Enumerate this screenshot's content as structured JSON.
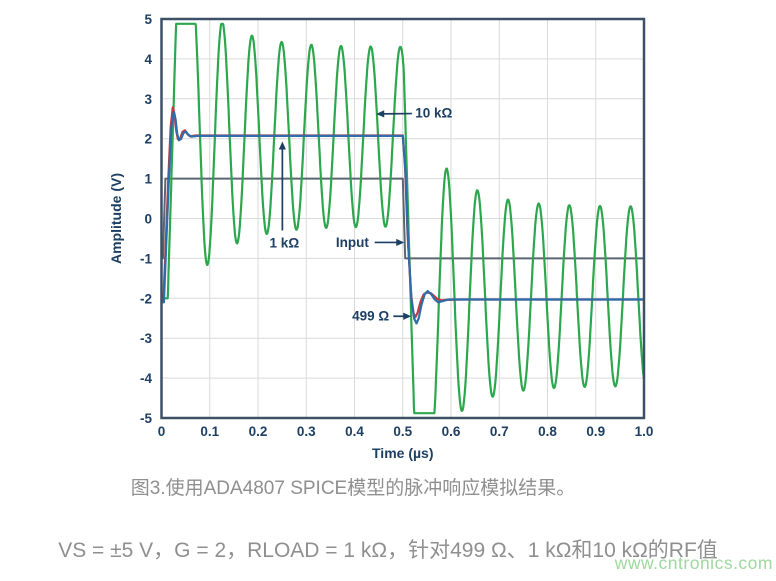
{
  "figure": {
    "caption": "图3.使用ADA4807 SPICE模型的脉冲响应模拟结果。",
    "subtext": "VS = ±5 V，G = 2，RLOAD = 1 kΩ，针对499 Ω、1 kΩ和10 kΩ的RF值",
    "watermark": "www.cntronics.com"
  },
  "chart_data": {
    "type": "line",
    "title": "",
    "xlabel": "Time (µs)",
    "ylabel": "Amplitude (V)",
    "xlim": [
      0,
      1.0
    ],
    "ylim": [
      -5,
      5
    ],
    "grid": true,
    "legend_position": "none",
    "xticks": {
      "values": [
        0,
        0.1,
        0.2,
        0.3,
        0.4,
        0.5,
        0.6,
        0.7,
        0.8,
        0.9,
        1.0
      ],
      "labels": [
        "0",
        "0.1",
        "0.2",
        "0.3",
        "0.4",
        "0.5",
        "0.6",
        "0.7",
        "0.8",
        "0.9",
        "1.0"
      ]
    },
    "yticks": {
      "values": [
        5,
        4,
        3,
        2,
        1,
        0,
        -1,
        -2,
        -3,
        -4,
        -5
      ],
      "labels": [
        "5",
        "4",
        "3",
        "2",
        "1",
        "0",
        "-1",
        "-2",
        "-3",
        "-4",
        "-5"
      ]
    },
    "colors": {
      "green": "#2ca74e",
      "blue": "#2e6cac",
      "red": "#c23b3b",
      "input_gray": "#5b6670",
      "axis_navy": "#1d3f63",
      "grid": "#d9d9d9",
      "border": "#3d5166"
    },
    "annotations": [
      {
        "label": "10 kΩ",
        "anchor": "start",
        "text": {
          "t": 0.526,
          "v": 2.64
        },
        "arrow": {
          "from": {
            "t": 0.519,
            "v": 2.63
          },
          "to": {
            "t": 0.445,
            "v": 2.62
          }
        }
      },
      {
        "label": "1 kΩ",
        "anchor": "middle",
        "text": {
          "t": 0.2546,
          "v": -0.62
        },
        "arrow": {
          "from": {
            "t": 0.2505,
            "v": -0.3
          },
          "to": {
            "t": 0.2505,
            "v": 1.93
          }
        }
      },
      {
        "label": "Input",
        "anchor": "middle",
        "text": {
          "t": 0.3955,
          "v": -0.6
        },
        "arrow": {
          "from": {
            "t": 0.4417,
            "v": -0.6
          },
          "to": {
            "t": 0.5031,
            "v": -0.6
          }
        }
      },
      {
        "label": "499 Ω",
        "anchor": "end",
        "text": {
          "t": 0.472,
          "v": -2.44
        },
        "arrow": {
          "from": {
            "t": 0.4804,
            "v": -2.45
          },
          "to": {
            "t": 0.5176,
            "v": -2.45
          }
        }
      }
    ],
    "series": [
      {
        "name": "Input",
        "color_key": "input_gray",
        "width": 2,
        "kind": "points",
        "points": [
          [
            0,
            -1
          ],
          [
            0.003,
            -1
          ],
          [
            0.008,
            1
          ],
          [
            0.5,
            1
          ],
          [
            0.505,
            -1
          ],
          [
            1,
            -1
          ]
        ]
      },
      {
        "name": "10 kΩ",
        "color_key": "green",
        "width": 2.2,
        "kind": "ringing",
        "params": {
          "start_level": -2,
          "delay": 0.013,
          "slew": 400,
          "clip_hi": 4.88,
          "clip_lo": -4.88,
          "fall_t": 0.502,
          "ring1": {
            "center": 2.05,
            "t0": 0.0645,
            "period": 0.0615,
            "a_base": 2.25,
            "a_amp": 1.45,
            "a_tau": 0.075
          },
          "ring2": {
            "center": -1.95,
            "t0": 0.5595,
            "period": 0.0635,
            "a_base": 2.25,
            "a_amp": 1.45,
            "a_tau": 0.075
          }
        }
      },
      {
        "name": "1 kΩ",
        "color_key": "red",
        "width": 2.2,
        "kind": "points",
        "points": [
          [
            0,
            -2.05
          ],
          [
            0.004,
            -2.05
          ],
          [
            0.009,
            -0.6
          ],
          [
            0.014,
            1.0
          ],
          [
            0.019,
            2.3
          ],
          [
            0.0235,
            2.79
          ],
          [
            0.027,
            2.62
          ],
          [
            0.0305,
            2.2
          ],
          [
            0.034,
            1.99
          ],
          [
            0.0385,
            2.0
          ],
          [
            0.0435,
            2.17
          ],
          [
            0.0485,
            2.21
          ],
          [
            0.0535,
            2.12
          ],
          [
            0.059,
            2.06
          ],
          [
            0.07,
            2.08
          ],
          [
            0.5,
            2.08
          ],
          [
            0.5045,
            1.4
          ],
          [
            0.51,
            -0.4
          ],
          [
            0.517,
            -1.9
          ],
          [
            0.5225,
            -2.38
          ],
          [
            0.5265,
            -2.47
          ],
          [
            0.531,
            -2.35
          ],
          [
            0.537,
            -2.08
          ],
          [
            0.5435,
            -1.9
          ],
          [
            0.55,
            -1.855
          ],
          [
            0.558,
            -1.87
          ],
          [
            0.5655,
            -1.95
          ],
          [
            0.572,
            -2.02
          ],
          [
            0.58,
            -2.05
          ],
          [
            0.59,
            -2.04
          ],
          [
            0.62,
            -2.03
          ],
          [
            1,
            -2.03
          ]
        ]
      },
      {
        "name": "499 Ω",
        "color_key": "blue",
        "width": 2.2,
        "kind": "points",
        "points": [
          [
            0,
            -2.1
          ],
          [
            0.005,
            -2.1
          ],
          [
            0.01,
            -0.6
          ],
          [
            0.0155,
            1.05
          ],
          [
            0.0205,
            2.3
          ],
          [
            0.0255,
            2.67
          ],
          [
            0.029,
            2.5
          ],
          [
            0.0325,
            2.12
          ],
          [
            0.036,
            1.96
          ],
          [
            0.0405,
            1.99
          ],
          [
            0.0455,
            2.14
          ],
          [
            0.0505,
            2.18
          ],
          [
            0.0555,
            2.1
          ],
          [
            0.062,
            2.05
          ],
          [
            0.075,
            2.07
          ],
          [
            0.5,
            2.07
          ],
          [
            0.5055,
            1.2
          ],
          [
            0.5115,
            -0.7
          ],
          [
            0.5185,
            -2.1
          ],
          [
            0.524,
            -2.52
          ],
          [
            0.5285,
            -2.63
          ],
          [
            0.533,
            -2.5
          ],
          [
            0.539,
            -2.15
          ],
          [
            0.5455,
            -1.9
          ],
          [
            0.5515,
            -1.82
          ],
          [
            0.559,
            -1.9
          ],
          [
            0.5665,
            -2.03
          ],
          [
            0.5735,
            -2.1
          ],
          [
            0.583,
            -2.07
          ],
          [
            0.595,
            -2.03
          ],
          [
            0.63,
            -2.03
          ],
          [
            1,
            -2.03
          ]
        ]
      }
    ]
  }
}
